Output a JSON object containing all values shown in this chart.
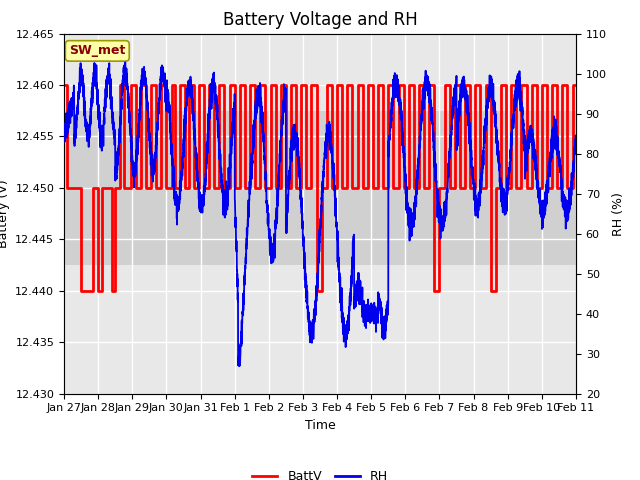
{
  "title": "Battery Voltage and RH",
  "xlabel": "Time",
  "ylabel_left": "Battery (V)",
  "ylabel_right": "RH (%)",
  "annotation": "SW_met",
  "ylim_left": [
    12.43,
    12.465
  ],
  "ylim_right": [
    20,
    110
  ],
  "yticks_left": [
    12.43,
    12.435,
    12.44,
    12.445,
    12.45,
    12.455,
    12.46,
    12.465
  ],
  "yticks_right": [
    20,
    30,
    40,
    50,
    60,
    70,
    80,
    90,
    100,
    110
  ],
  "xtick_labels": [
    "Jan 27",
    "Jan 28",
    "Jan 29",
    "Jan 30",
    "Jan 31",
    "Feb 1",
    "Feb 2",
    "Feb 3",
    "Feb 4",
    "Feb 5",
    "Feb 6",
    "Feb 7",
    "Feb 8",
    "Feb 9",
    "Feb 10",
    "Feb 11"
  ],
  "batt_color": "#ff0000",
  "rh_color": "#0000ee",
  "bg_color": "#ffffff",
  "plot_bg_light": "#e0e0e0",
  "plot_bg_dark": "#cccccc",
  "legend_batt": "BattV",
  "legend_rh": "RH",
  "annotation_bg": "#ffffaa",
  "annotation_border": "#999900",
  "annotation_text_color": "#880000",
  "grid_color": "#ffffff",
  "title_fontsize": 12,
  "label_fontsize": 9,
  "tick_fontsize": 8
}
